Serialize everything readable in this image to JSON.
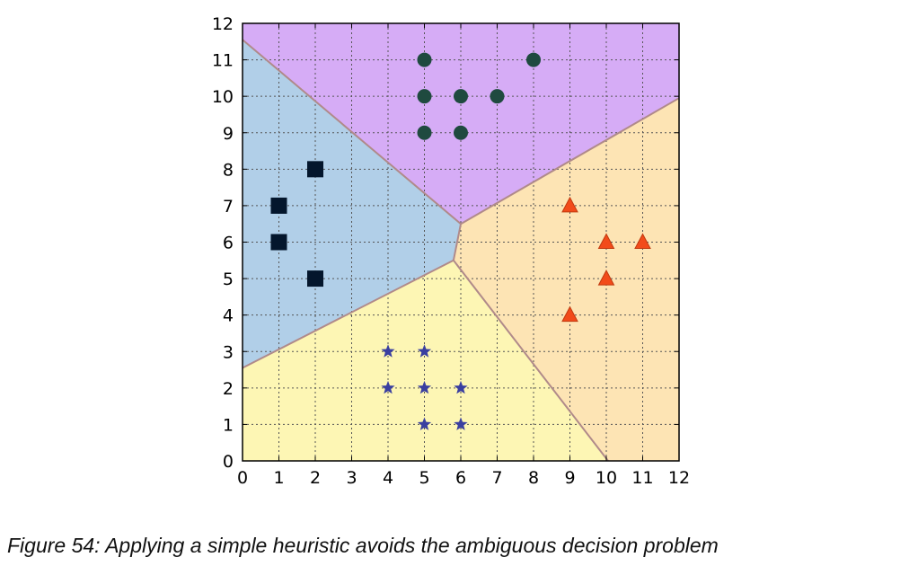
{
  "caption": "Figure 54: Applying a simple heuristic avoids the ambiguous decision problem",
  "chart_data": {
    "type": "scatter",
    "title": "",
    "xlabel": "",
    "ylabel": "",
    "xlim": [
      0,
      12
    ],
    "ylim": [
      0,
      12
    ],
    "xticks": [
      0,
      1,
      2,
      3,
      4,
      5,
      6,
      7,
      8,
      9,
      10,
      11,
      12
    ],
    "yticks": [
      0,
      1,
      2,
      3,
      4,
      5,
      6,
      7,
      8,
      9,
      10,
      11,
      12
    ],
    "grid": true,
    "grid_style": "dotted",
    "regions": [
      {
        "name": "circle-region",
        "color": "#d6acf6",
        "polygon": [
          [
            0,
            11.55
          ],
          [
            0,
            12
          ],
          [
            12,
            12
          ],
          [
            12,
            9.95
          ],
          [
            6.0,
            6.5
          ]
        ]
      },
      {
        "name": "square-region",
        "color": "#b1cfe8",
        "polygon": [
          [
            0,
            2.55
          ],
          [
            0,
            11.55
          ],
          [
            6.0,
            6.5
          ],
          [
            5.8,
            5.5
          ]
        ]
      },
      {
        "name": "triangle-region",
        "color": "#fde4b4",
        "polygon": [
          [
            5.8,
            5.5
          ],
          [
            6.0,
            6.5
          ],
          [
            12,
            9.95
          ],
          [
            12,
            0
          ],
          [
            10.05,
            0
          ]
        ]
      },
      {
        "name": "star-region",
        "color": "#fdf6b4",
        "polygon": [
          [
            0,
            0
          ],
          [
            0,
            2.55
          ],
          [
            5.8,
            5.5
          ],
          [
            10.05,
            0
          ]
        ]
      }
    ],
    "boundary_color": "#b08a8a",
    "boundaries": [
      [
        [
          0,
          11.55
        ],
        [
          6.0,
          6.5
        ]
      ],
      [
        [
          6.0,
          6.5
        ],
        [
          12,
          9.95
        ]
      ],
      [
        [
          6.0,
          6.5
        ],
        [
          5.8,
          5.5
        ]
      ],
      [
        [
          5.8,
          5.5
        ],
        [
          0,
          2.55
        ]
      ],
      [
        [
          5.8,
          5.5
        ],
        [
          10.05,
          0
        ]
      ]
    ],
    "series": [
      {
        "marker": "circle",
        "color": "#1f4a3f",
        "points": [
          [
            5,
            11
          ],
          [
            8,
            11
          ],
          [
            5,
            10
          ],
          [
            6,
            10
          ],
          [
            7,
            10
          ],
          [
            5,
            9
          ],
          [
            6,
            9
          ]
        ]
      },
      {
        "marker": "square",
        "color": "#04162c",
        "points": [
          [
            2,
            8
          ],
          [
            1,
            7
          ],
          [
            1,
            6
          ],
          [
            2,
            5
          ]
        ]
      },
      {
        "marker": "triangle",
        "color": "#f24b1a",
        "points": [
          [
            9,
            7
          ],
          [
            10,
            6
          ],
          [
            11,
            6
          ],
          [
            10,
            5
          ],
          [
            9,
            4
          ]
        ]
      },
      {
        "marker": "star",
        "color": "#3a3fa0",
        "points": [
          [
            4,
            3
          ],
          [
            5,
            3
          ],
          [
            4,
            2
          ],
          [
            5,
            2
          ],
          [
            6,
            2
          ],
          [
            5,
            1
          ],
          [
            6,
            1
          ]
        ]
      }
    ]
  }
}
